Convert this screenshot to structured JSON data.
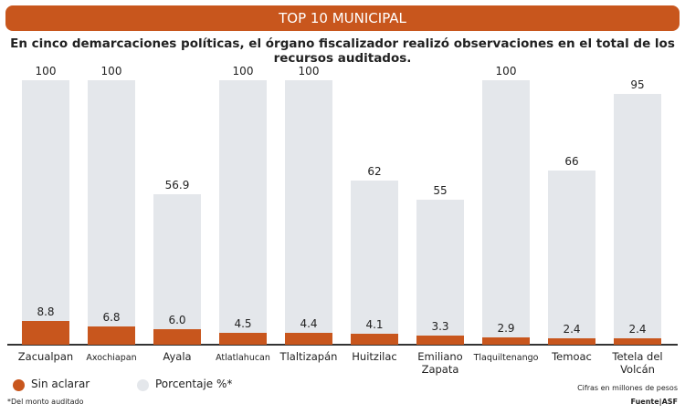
{
  "chart_data": {
    "type": "overlap-bar",
    "title": "TOP 10 MUNICIPAL",
    "subtitle": "En cinco demarcaciones políticas, el órgano fiscalizador realizó observaciones en el total de los recursos auditados.",
    "categories": [
      "Zacualpan",
      "Axochiapan",
      "Ayala",
      "Atlatlahucan",
      "Tlaltizapán",
      "Huitzilac",
      "Emiliano Zapata",
      "Tlaquiltenango",
      "Temoac",
      "Tetela del Volcán"
    ],
    "series": [
      {
        "name": "Sin aclarar",
        "color": "#c8561d",
        "values": [
          8.8,
          6.8,
          6.0,
          4.5,
          4.4,
          4.1,
          3.3,
          2.9,
          2.4,
          2.4
        ],
        "value_labels": [
          "8.8",
          "6.8",
          "6.0",
          "4.5",
          "4.4",
          "4.1",
          "3.3",
          "2.9",
          "2.4",
          "2.4"
        ]
      },
      {
        "name": "Porcentaje %*",
        "color": "#e4e7eb",
        "values": [
          100,
          100,
          56.9,
          100,
          100,
          62,
          55,
          100,
          66,
          95
        ]
      }
    ],
    "note": "*Del monto auditado",
    "units_note": "Cifras en millones de pesos",
    "source": "Fuente|ASF"
  }
}
